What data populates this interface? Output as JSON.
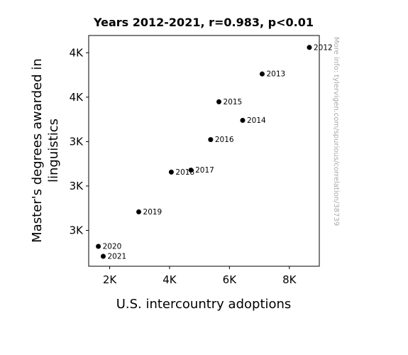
{
  "chart_data": {
    "type": "scatter",
    "title": "Years 2012-2021, r=0.983, p<0.01",
    "xlabel": "U.S. intercountry adoptions",
    "ylabel_lines": [
      "Master's degrees awarded in",
      "linguistics"
    ],
    "xlim": [
      1300,
      9000
    ],
    "ylim": [
      2300,
      4040
    ],
    "x_ticks": [
      {
        "value": 2000,
        "label": "2K"
      },
      {
        "value": 4000,
        "label": "4K"
      },
      {
        "value": 6000,
        "label": "6K"
      },
      {
        "value": 8000,
        "label": "8K"
      }
    ],
    "y_ticks": [
      {
        "value": 2570,
        "label": "3K"
      },
      {
        "value": 2905,
        "label": "3K"
      },
      {
        "value": 3240,
        "label": "3K"
      },
      {
        "value": 3575,
        "label": "4K"
      },
      {
        "value": 3910,
        "label": "4K"
      }
    ],
    "points": [
      {
        "label": "2012",
        "x": 8668,
        "y": 3950
      },
      {
        "label": "2013",
        "x": 7092,
        "y": 3750
      },
      {
        "label": "2014",
        "x": 6441,
        "y": 3400
      },
      {
        "label": "2015",
        "x": 5648,
        "y": 3540
      },
      {
        "label": "2016",
        "x": 5372,
        "y": 3255
      },
      {
        "label": "2017",
        "x": 4714,
        "y": 3025
      },
      {
        "label": "2018",
        "x": 4058,
        "y": 3010
      },
      {
        "label": "2019",
        "x": 2971,
        "y": 2710
      },
      {
        "label": "2020",
        "x": 1622,
        "y": 2450
      },
      {
        "label": "2021",
        "x": 1785,
        "y": 2375
      }
    ],
    "point_color": "#000000",
    "grid": false,
    "legend": "none"
  },
  "watermark": "More info: tylervigen.com/spurious/correlation/38739"
}
